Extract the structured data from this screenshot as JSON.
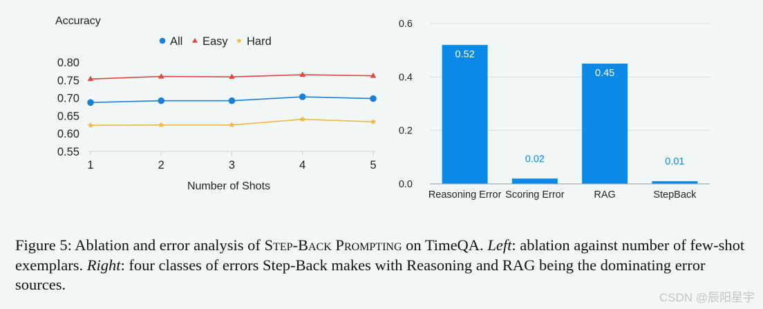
{
  "chart_data": [
    {
      "type": "line",
      "title": "",
      "ylabel": "Accuracy",
      "xlabel": "Number of Shots",
      "x": [
        1,
        2,
        3,
        4,
        5
      ],
      "ylim": [
        0.55,
        0.8
      ],
      "yticks": [
        "0.55",
        "0.60",
        "0.65",
        "0.70",
        "0.75",
        "0.80"
      ],
      "legend_position": "top",
      "series": [
        {
          "name": "All",
          "values": [
            0.687,
            0.692,
            0.692,
            0.703,
            0.698
          ],
          "color": "#1a7fd6",
          "marker": "circle"
        },
        {
          "name": "Easy",
          "values": [
            0.753,
            0.76,
            0.759,
            0.765,
            0.762
          ],
          "color": "#e0463d",
          "marker": "triangle"
        },
        {
          "name": "Hard",
          "values": [
            0.623,
            0.624,
            0.624,
            0.64,
            0.633
          ],
          "color": "#f0b73a",
          "marker": "star"
        }
      ]
    },
    {
      "type": "bar",
      "title": "",
      "categories": [
        "Reasoning Error",
        "Scoring Error",
        "RAG",
        "StepBack"
      ],
      "values": [
        0.52,
        0.02,
        0.45,
        0.01
      ],
      "value_labels": [
        "0.52",
        "0.02",
        "0.45",
        "0.01"
      ],
      "ylim": [
        0,
        0.6
      ],
      "yticks": [
        "0.0",
        "0.2",
        "0.4",
        "0.6"
      ],
      "color": "#0a8ae6"
    }
  ],
  "caption": {
    "figure_label": "Figure 5: Ablation and error analysis of ",
    "method_name": "Step-Back Prompting",
    "on_dataset": " on TimeQA. ",
    "left_label": "Left",
    "left_text": ": ablation against number of few-shot exemplars. ",
    "right_label": "Right",
    "right_text": ": four classes of errors Step-Back makes with Reasoning and RAG being the dominating error sources."
  },
  "watermark": "CSDN @辰阳星宇"
}
